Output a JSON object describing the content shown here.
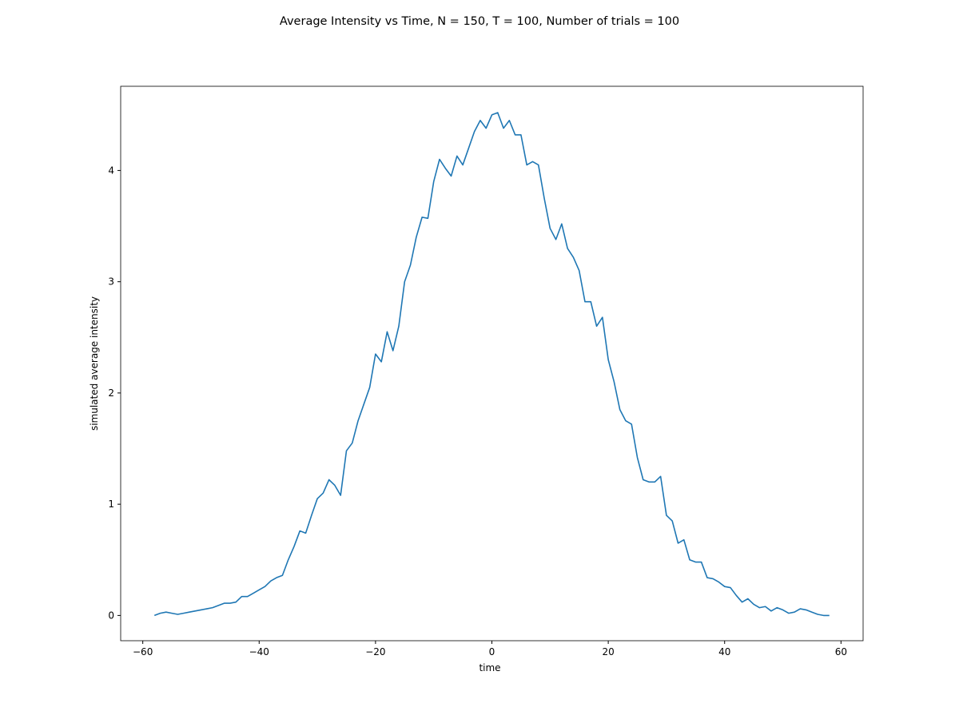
{
  "chart_data": {
    "type": "line",
    "title": "Average Intensity vs Time, N = 150, T = 100, Number of trials = 100",
    "xlabel": "time",
    "ylabel": "simulated average intensity",
    "x": [
      -58,
      -57,
      -56,
      -55,
      -54,
      -53,
      -52,
      -51,
      -50,
      -49,
      -48,
      -47,
      -46,
      -45,
      -44,
      -43,
      -42,
      -41,
      -40,
      -39,
      -38,
      -37,
      -36,
      -35,
      -34,
      -33,
      -32,
      -31,
      -30,
      -29,
      -28,
      -27,
      -26,
      -25,
      -24,
      -23,
      -22,
      -21,
      -20,
      -19,
      -18,
      -17,
      -16,
      -15,
      -14,
      -13,
      -12,
      -11,
      -10,
      -9,
      -8,
      -7,
      -6,
      -5,
      -4,
      -3,
      -2,
      -1,
      0,
      1,
      2,
      3,
      4,
      5,
      6,
      7,
      8,
      9,
      10,
      11,
      12,
      13,
      14,
      15,
      16,
      17,
      18,
      19,
      20,
      21,
      22,
      23,
      24,
      25,
      26,
      27,
      28,
      29,
      30,
      31,
      32,
      33,
      34,
      35,
      36,
      37,
      38,
      39,
      40,
      41,
      42,
      43,
      44,
      45,
      46,
      47,
      48,
      49,
      50,
      51,
      52,
      53,
      54,
      55,
      56,
      57,
      58
    ],
    "series": [
      {
        "color": "#1f77b4",
        "values": [
          0.0,
          0.02,
          0.03,
          0.02,
          0.01,
          0.02,
          0.03,
          0.04,
          0.05,
          0.06,
          0.07,
          0.09,
          0.11,
          0.11,
          0.12,
          0.17,
          0.17,
          0.2,
          0.23,
          0.26,
          0.31,
          0.34,
          0.36,
          0.5,
          0.62,
          0.76,
          0.74,
          0.9,
          1.05,
          1.1,
          1.22,
          1.17,
          1.08,
          1.48,
          1.55,
          1.75,
          1.9,
          2.05,
          2.35,
          2.28,
          2.55,
          2.38,
          2.6,
          3.0,
          3.15,
          3.4,
          3.58,
          3.57,
          3.9,
          4.1,
          4.02,
          3.95,
          4.13,
          4.05,
          4.2,
          4.35,
          4.45,
          4.38,
          4.5,
          4.52,
          4.38,
          4.45,
          4.32,
          4.32,
          4.05,
          4.08,
          4.05,
          3.75,
          3.48,
          3.38,
          3.52,
          3.3,
          3.22,
          3.1,
          2.82,
          2.82,
          2.6,
          2.68,
          2.3,
          2.1,
          1.85,
          1.75,
          1.72,
          1.42,
          1.22,
          1.2,
          1.2,
          1.25,
          0.9,
          0.85,
          0.65,
          0.68,
          0.5,
          0.48,
          0.48,
          0.34,
          0.33,
          0.3,
          0.26,
          0.25,
          0.18,
          0.12,
          0.15,
          0.1,
          0.07,
          0.08,
          0.04,
          0.07,
          0.05,
          0.02,
          0.03,
          0.06,
          0.05,
          0.03,
          0.01,
          0.0,
          0.0
        ]
      }
    ],
    "xlim": [
      -63.8,
      63.8
    ],
    "xticks": [
      {
        "value": -60,
        "label": "−60"
      },
      {
        "value": -40,
        "label": "−40"
      },
      {
        "value": -20,
        "label": "−20"
      },
      0,
      20,
      40,
      60
    ],
    "ylim": [
      -0.227,
      4.757
    ],
    "yticks": [
      0,
      1,
      2,
      3,
      4
    ]
  }
}
